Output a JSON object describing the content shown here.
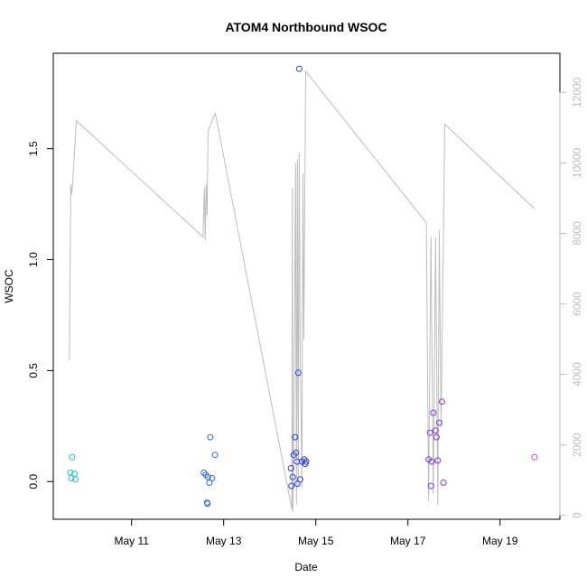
{
  "chart_data": {
    "type": "scatter",
    "title": "ATOM4 Northbound WSOC",
    "xlabel": "Date",
    "ylabel": "WSOC",
    "x_unit": "day of May",
    "xlim": [
      9.3,
      20.3
    ],
    "ylim": [
      -0.17,
      1.93
    ],
    "y2lim": [
      -110,
      13110
    ],
    "x_ticks": [
      {
        "value": 11,
        "label": "May 11"
      },
      {
        "value": 13,
        "label": "May 13"
      },
      {
        "value": 15,
        "label": "May 15"
      },
      {
        "value": 17,
        "label": "May 17"
      },
      {
        "value": 19,
        "label": "May 19"
      }
    ],
    "y_ticks": [
      {
        "value": 0.0,
        "label": "0.0"
      },
      {
        "value": 0.5,
        "label": "0.5"
      },
      {
        "value": 1.0,
        "label": "1.0"
      },
      {
        "value": 1.5,
        "label": "1.5"
      }
    ],
    "y2_ticks": [
      {
        "value": 0,
        "label": "0"
      },
      {
        "value": 2000,
        "label": "2000"
      },
      {
        "value": 4000,
        "label": "4000"
      },
      {
        "value": 6000,
        "label": "6000"
      },
      {
        "value": 8000,
        "label": "8000"
      },
      {
        "value": 10000,
        "label": "10000"
      },
      {
        "value": 12000,
        "label": "12000"
      }
    ],
    "series": [
      {
        "name": "WSOC",
        "color_by_date": true,
        "points": [
          {
            "x": 9.67,
            "y": 0.04,
            "color": "#29b8e8"
          },
          {
            "x": 9.69,
            "y": 0.015,
            "color": "#29b8e8"
          },
          {
            "x": 9.71,
            "y": 0.11,
            "color": "#29b8e8"
          },
          {
            "x": 9.76,
            "y": 0.035,
            "color": "#29b8e8"
          },
          {
            "x": 9.78,
            "y": 0.01,
            "color": "#29b8e8"
          },
          {
            "x": 12.57,
            "y": 0.04,
            "color": "#2f6ae8"
          },
          {
            "x": 12.61,
            "y": 0.03,
            "color": "#2f6ae8"
          },
          {
            "x": 12.64,
            "y": -0.095,
            "color": "#2f6ae8"
          },
          {
            "x": 12.65,
            "y": -0.1,
            "color": "#2f6ae8"
          },
          {
            "x": 12.66,
            "y": 0.02,
            "color": "#2f6ae8"
          },
          {
            "x": 12.69,
            "y": -0.005,
            "color": "#2f6ae8"
          },
          {
            "x": 12.71,
            "y": 0.2,
            "color": "#2f6ae8"
          },
          {
            "x": 12.75,
            "y": 0.015,
            "color": "#2f6ae8"
          },
          {
            "x": 12.81,
            "y": 0.12,
            "color": "#2f6ae8"
          },
          {
            "x": 14.46,
            "y": 0.06,
            "color": "#2b3ae6"
          },
          {
            "x": 14.47,
            "y": -0.02,
            "color": "#2b3ae6"
          },
          {
            "x": 14.5,
            "y": 0.02,
            "color": "#2b3ae6"
          },
          {
            "x": 14.52,
            "y": 0.12,
            "color": "#2b3ae6"
          },
          {
            "x": 14.55,
            "y": 0.2,
            "color": "#2b3ae6"
          },
          {
            "x": 14.57,
            "y": 0.13,
            "color": "#2b3ae6"
          },
          {
            "x": 14.59,
            "y": 0.09,
            "color": "#2b3ae6"
          },
          {
            "x": 14.6,
            "y": -0.01,
            "color": "#2b3ae6"
          },
          {
            "x": 14.62,
            "y": 0.49,
            "color": "#2b3ae6"
          },
          {
            "x": 14.64,
            "y": 1.86,
            "color": "#2b3ae6"
          },
          {
            "x": 14.66,
            "y": 0.01,
            "color": "#2b3ae6"
          },
          {
            "x": 14.7,
            "y": 0.09,
            "color": "#2b3ae6"
          },
          {
            "x": 14.75,
            "y": 0.1,
            "color": "#2b3ae6"
          },
          {
            "x": 14.77,
            "y": 0.08,
            "color": "#2b3ae6"
          },
          {
            "x": 14.79,
            "y": 0.09,
            "color": "#2b3ae6"
          },
          {
            "x": 17.45,
            "y": 0.1,
            "color": "#7a3ae6"
          },
          {
            "x": 17.48,
            "y": 0.22,
            "color": "#7a3ae6"
          },
          {
            "x": 17.5,
            "y": -0.02,
            "color": "#7a3ae6"
          },
          {
            "x": 17.52,
            "y": 0.09,
            "color": "#7a3ae6"
          },
          {
            "x": 17.55,
            "y": 0.31,
            "color": "#7a3ae6"
          },
          {
            "x": 17.6,
            "y": 0.23,
            "color": "#7a3ae6"
          },
          {
            "x": 17.62,
            "y": 0.2,
            "color": "#7a3ae6"
          },
          {
            "x": 17.65,
            "y": 0.095,
            "color": "#7a3ae6"
          },
          {
            "x": 17.68,
            "y": 0.265,
            "color": "#7a3ae6"
          },
          {
            "x": 17.74,
            "y": 0.36,
            "color": "#7a3ae6"
          },
          {
            "x": 17.77,
            "y": -0.005,
            "color": "#7a3ae6"
          },
          {
            "x": 19.75,
            "y": 0.11,
            "color": "#c83ae0"
          }
        ]
      },
      {
        "name": "secondary (right axis)",
        "axis": "right",
        "color": "#bdbdbd",
        "line": [
          [
            9.65,
            4400
          ],
          [
            9.68,
            9400
          ],
          [
            9.7,
            9100
          ],
          [
            9.72,
            9400
          ],
          [
            9.8,
            11200
          ],
          [
            12.55,
            7900
          ],
          [
            12.58,
            9300
          ],
          [
            12.6,
            7800
          ],
          [
            12.62,
            9400
          ],
          [
            12.64,
            8500
          ],
          [
            12.66,
            10900
          ],
          [
            12.78,
            11300
          ],
          [
            12.82,
            11400
          ],
          [
            14.48,
            180
          ],
          [
            14.49,
            9300
          ],
          [
            14.5,
            100
          ],
          [
            14.53,
            3500
          ],
          [
            14.56,
            10000
          ],
          [
            14.58,
            300
          ],
          [
            14.6,
            10100
          ],
          [
            14.62,
            800
          ],
          [
            14.64,
            10300
          ],
          [
            14.66,
            4800
          ],
          [
            14.7,
            800
          ],
          [
            14.72,
            9700
          ],
          [
            14.74,
            5000
          ],
          [
            14.78,
            12600
          ],
          [
            17.4,
            8300
          ],
          [
            17.45,
            400
          ],
          [
            17.5,
            7900
          ],
          [
            17.55,
            600
          ],
          [
            17.6,
            7900
          ],
          [
            17.65,
            300
          ],
          [
            17.68,
            8100
          ],
          [
            17.72,
            2500
          ],
          [
            17.8,
            11100
          ],
          [
            19.75,
            8700
          ]
        ]
      }
    ]
  }
}
